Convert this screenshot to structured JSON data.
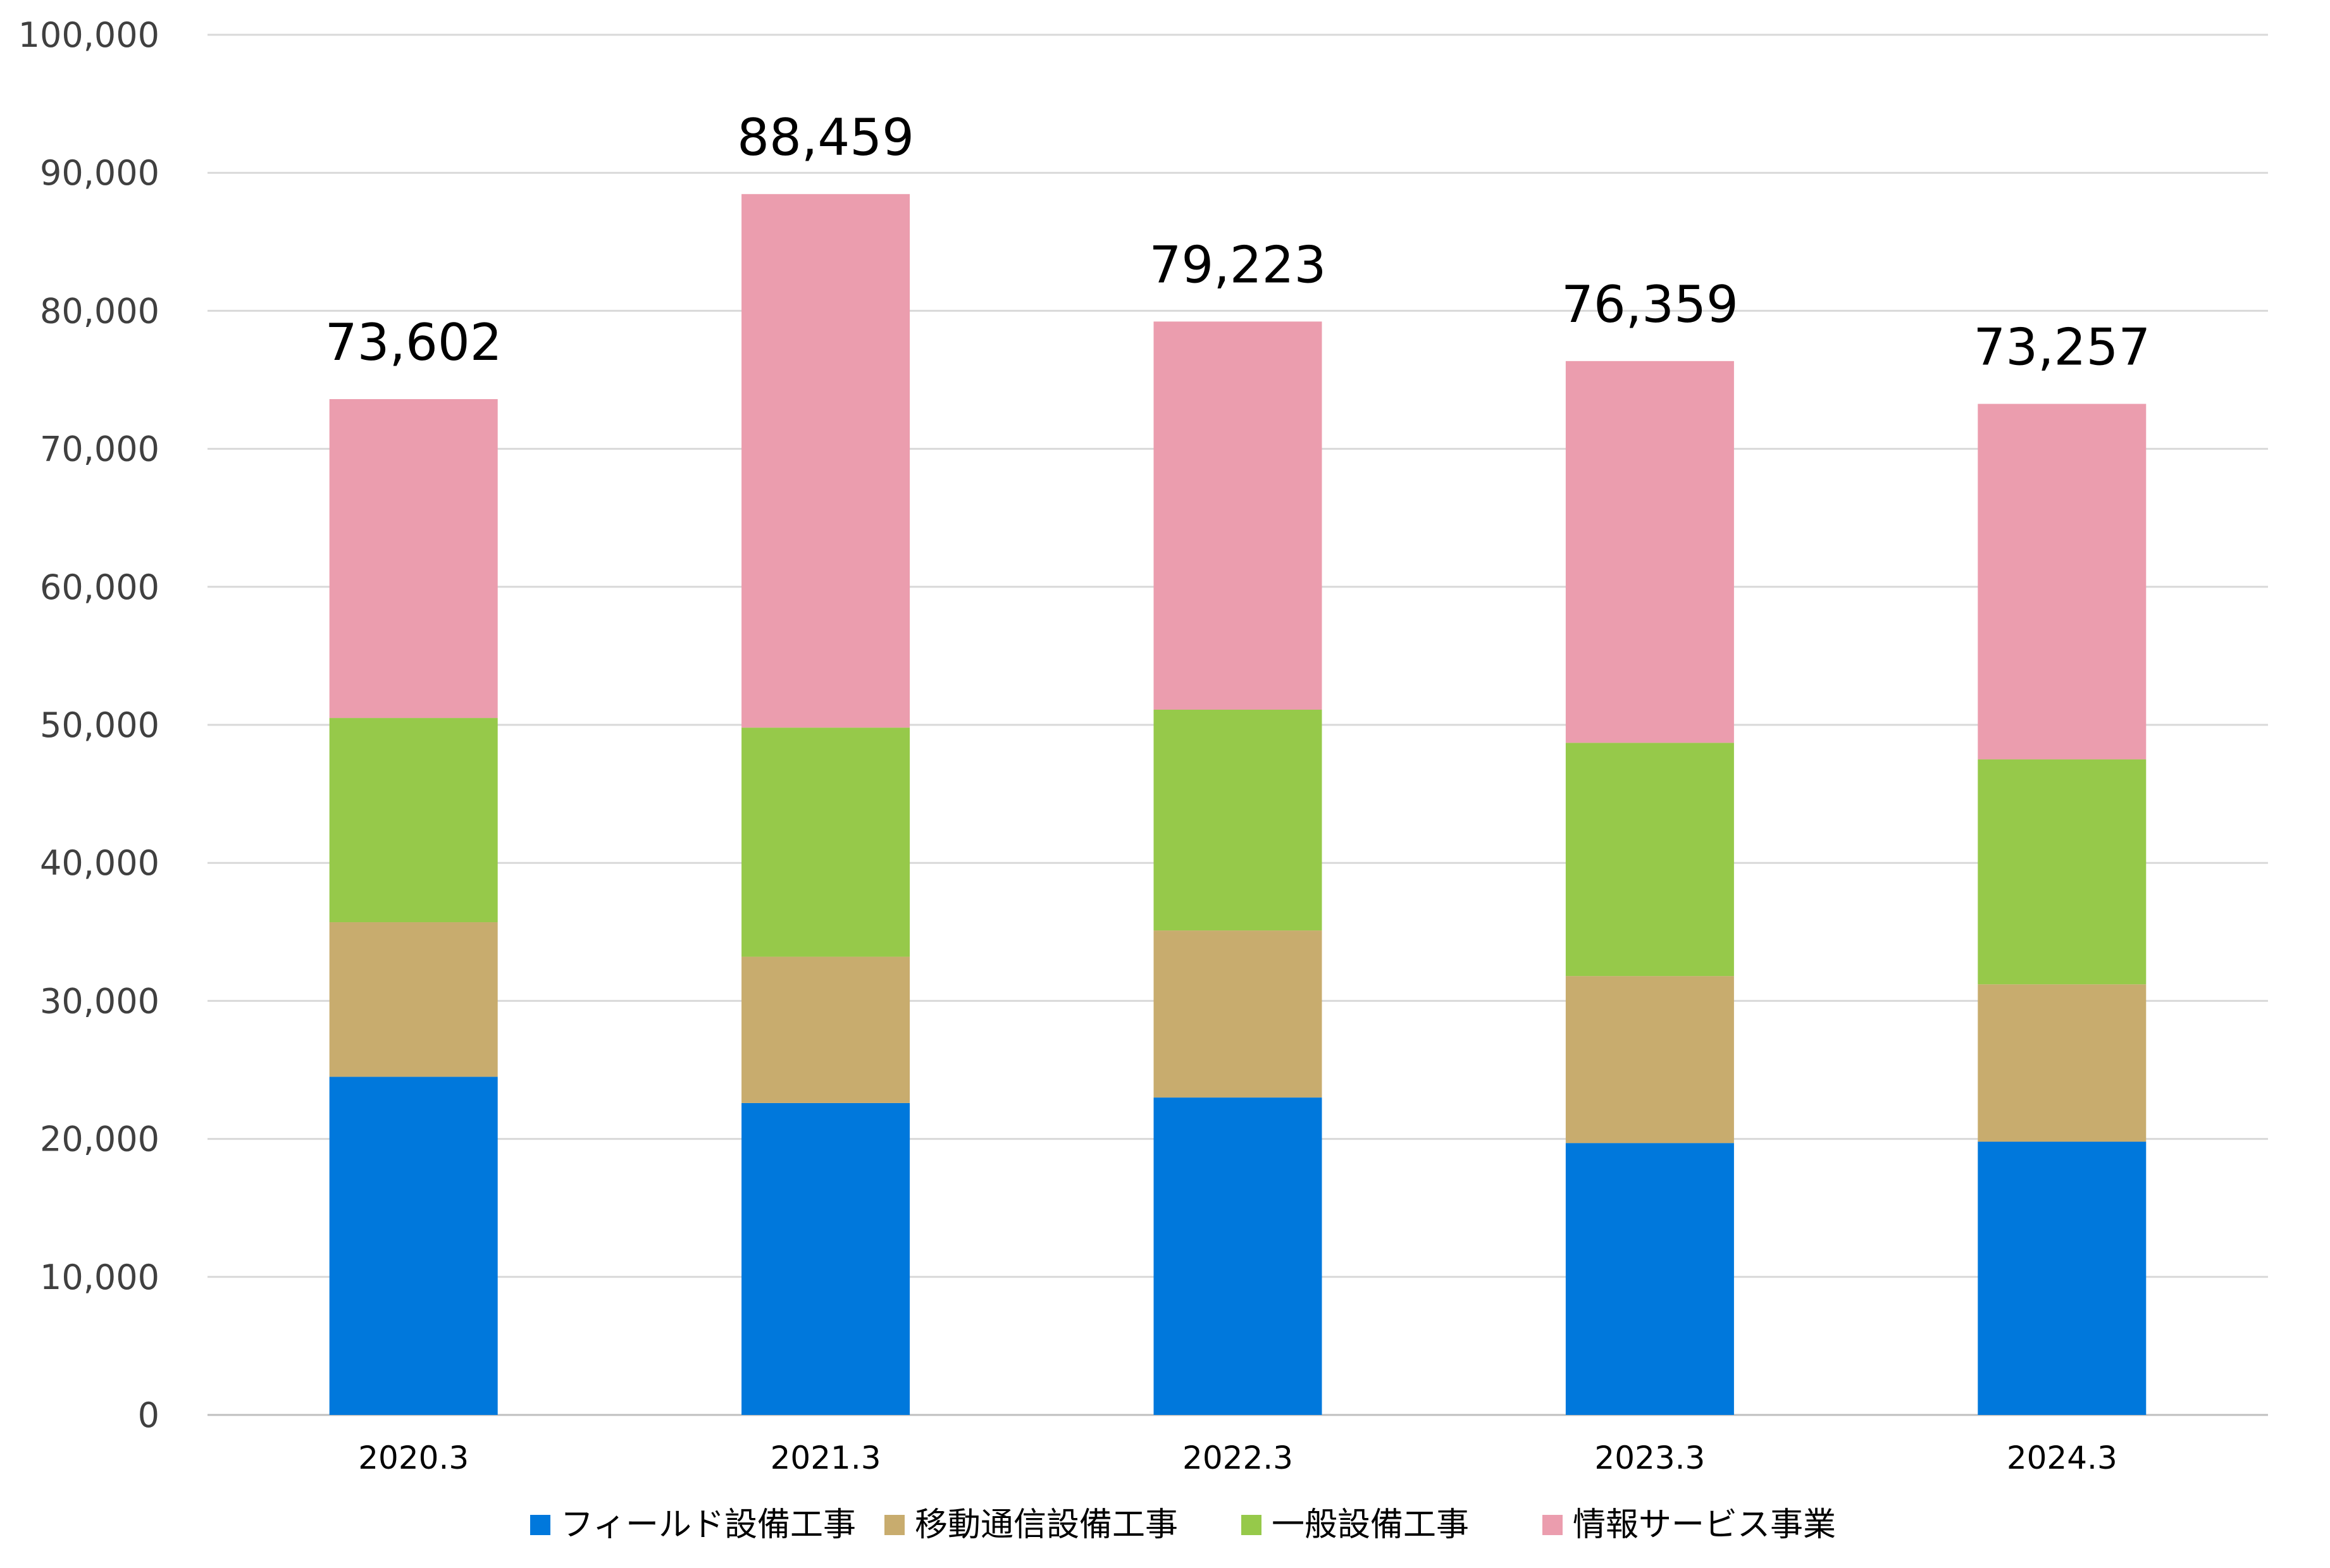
{
  "chart_data": {
    "type": "bar",
    "stacked": true,
    "title": "",
    "xlabel": "",
    "ylabel": "",
    "categories": [
      "2020.3",
      "2021.3",
      "2022.3",
      "2023.3",
      "2024.3"
    ],
    "ylim": [
      0,
      100000
    ],
    "yticks": [
      0,
      10000,
      20000,
      30000,
      40000,
      50000,
      60000,
      70000,
      80000,
      90000,
      100000
    ],
    "ytick_labels": [
      "0",
      "10,000",
      "20,000",
      "30,000",
      "40,000",
      "50,000",
      "60,000",
      "70,000",
      "80,000",
      "90,000",
      "100,000"
    ],
    "grid": true,
    "legend_position": "bottom",
    "series": [
      {
        "name": "フィールド設備工事",
        "color": "#0078DC",
        "values": [
          24500,
          22600,
          23000,
          19700,
          19800
        ]
      },
      {
        "name": "移動通信設備工事",
        "color": "#C8AC6E",
        "values": [
          11200,
          10600,
          12100,
          12100,
          11400
        ]
      },
      {
        "name": "一般設備工事",
        "color": "#96C94A",
        "values": [
          14800,
          16600,
          16000,
          16900,
          16300
        ]
      },
      {
        "name": "情報サービス事業",
        "color": "#EB9DAE",
        "values": [
          23102,
          38659,
          28123,
          27659,
          25757
        ]
      }
    ],
    "totals": [
      73602,
      88459,
      79223,
      76359,
      73257
    ],
    "total_labels": [
      "73,602",
      "88,459",
      "79,223",
      "76,359",
      "73,257"
    ]
  }
}
